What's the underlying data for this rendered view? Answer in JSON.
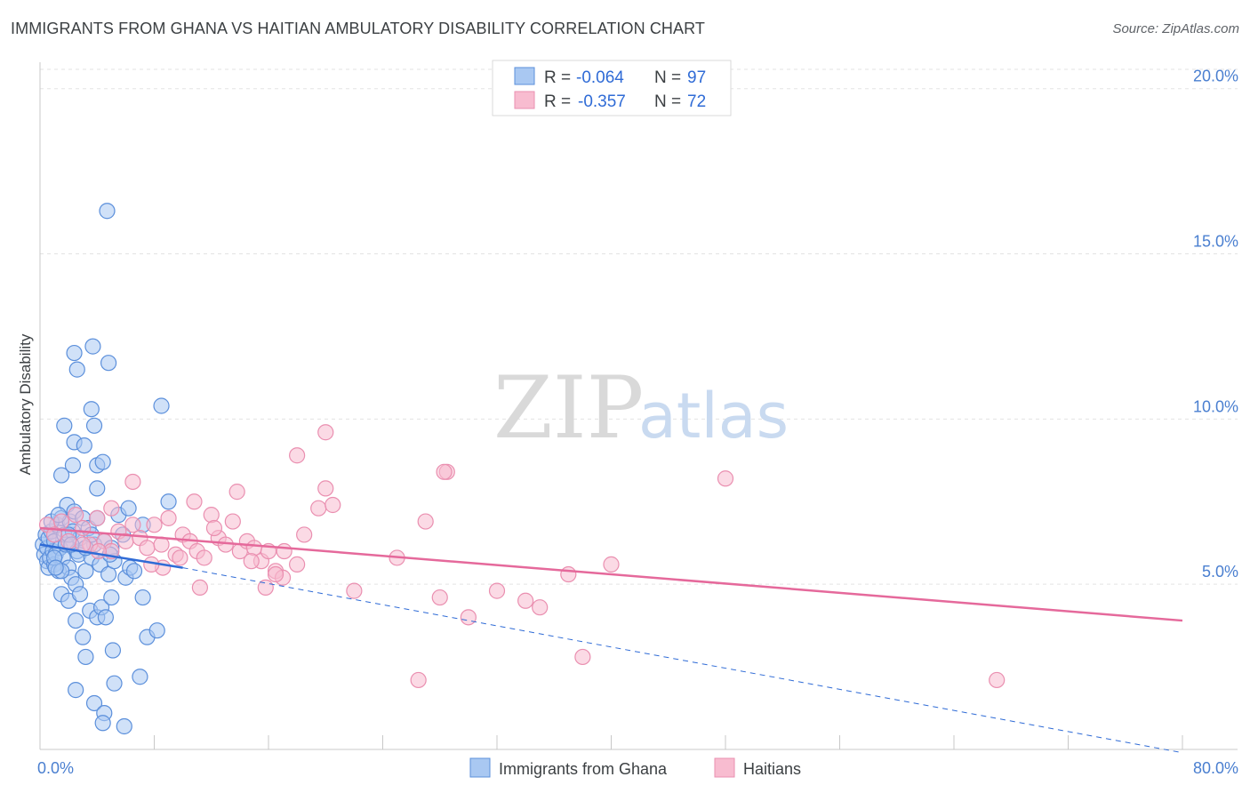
{
  "title": "IMMIGRANTS FROM GHANA VS HAITIAN AMBULATORY DISABILITY CORRELATION CHART",
  "source": "Source: ZipAtlas.com",
  "watermark": {
    "zip": "ZIP",
    "atlas": "atlas"
  },
  "colors": {
    "blue_fill": "#a9c8f2",
    "blue_stroke": "#5b8fdb",
    "blue_line": "#2f6bd6",
    "pink_fill": "#f8bcd0",
    "pink_stroke": "#ea8fb0",
    "pink_line": "#e5699b",
    "grid": "#e3e3e3",
    "tick_label": "#4a7fd0"
  },
  "legend": {
    "row1": {
      "r_label": "R =",
      "r_value": "-0.064",
      "n_label": "N =",
      "n_value": "97"
    },
    "row2": {
      "r_label": "R =",
      "r_value": "-0.357",
      "n_label": "N =",
      "n_value": "72"
    }
  },
  "chart_data": {
    "type": "scatter",
    "title": "IMMIGRANTS FROM GHANA VS HAITIAN AMBULATORY DISABILITY CORRELATION CHART",
    "ylabel": "Ambulatory Disability",
    "xlabel": "",
    "xlim": [
      0,
      80
    ],
    "ylim": [
      0,
      20.8
    ],
    "x_tick_labels": {
      "min": "0.0%",
      "max": "80.0%"
    },
    "y_ticks": [
      5,
      10,
      15,
      20
    ],
    "y_tick_labels": [
      "5.0%",
      "10.0%",
      "15.0%",
      "20.0%"
    ],
    "legend_position": "top-center",
    "series": [
      {
        "name": "Immigrants from Ghana",
        "color": "#5b8fdb",
        "points": [
          [
            0.2,
            6.2
          ],
          [
            0.3,
            5.9
          ],
          [
            0.4,
            6.5
          ],
          [
            0.5,
            5.7
          ],
          [
            0.5,
            6.1
          ],
          [
            0.6,
            5.5
          ],
          [
            0.6,
            6.4
          ],
          [
            0.7,
            5.8
          ],
          [
            0.8,
            6.6
          ],
          [
            0.9,
            6.0
          ],
          [
            1.0,
            5.6
          ],
          [
            1.0,
            6.3
          ],
          [
            1.1,
            5.9
          ],
          [
            1.2,
            6.8
          ],
          [
            1.3,
            5.4
          ],
          [
            1.4,
            6.1
          ],
          [
            1.5,
            7.0
          ],
          [
            1.6,
            5.8
          ],
          [
            1.7,
            6.5
          ],
          [
            1.8,
            6.2
          ],
          [
            1.9,
            7.4
          ],
          [
            2.0,
            5.5
          ],
          [
            2.1,
            6.9
          ],
          [
            2.2,
            5.2
          ],
          [
            2.3,
            6.6
          ],
          [
            2.4,
            7.2
          ],
          [
            2.5,
            5.0
          ],
          [
            2.6,
            6.0
          ],
          [
            2.7,
            5.9
          ],
          [
            2.8,
            6.4
          ],
          [
            3.0,
            7.0
          ],
          [
            3.2,
            5.4
          ],
          [
            3.4,
            6.7
          ],
          [
            3.6,
            5.8
          ],
          [
            3.8,
            6.2
          ],
          [
            4.0,
            7.0
          ],
          [
            4.2,
            5.6
          ],
          [
            4.5,
            6.3
          ],
          [
            4.8,
            5.3
          ],
          [
            5.0,
            6.1
          ],
          [
            5.2,
            5.7
          ],
          [
            5.5,
            7.1
          ],
          [
            5.8,
            6.5
          ],
          [
            6.0,
            5.2
          ],
          [
            6.3,
            5.5
          ],
          [
            1.5,
            8.3
          ],
          [
            1.7,
            9.8
          ],
          [
            2.3,
            8.6
          ],
          [
            2.4,
            9.3
          ],
          [
            3.1,
            9.2
          ],
          [
            3.6,
            10.3
          ],
          [
            3.8,
            9.8
          ],
          [
            4.0,
            8.6
          ],
          [
            4.4,
            8.7
          ],
          [
            2.4,
            12.0
          ],
          [
            2.6,
            11.5
          ],
          [
            3.7,
            12.2
          ],
          [
            4.8,
            11.7
          ],
          [
            4.7,
            16.3
          ],
          [
            8.5,
            10.4
          ],
          [
            1.5,
            4.7
          ],
          [
            2.0,
            4.5
          ],
          [
            2.5,
            3.9
          ],
          [
            3.0,
            3.4
          ],
          [
            3.2,
            2.8
          ],
          [
            3.5,
            4.2
          ],
          [
            4.0,
            4.0
          ],
          [
            4.3,
            4.3
          ],
          [
            4.6,
            4.0
          ],
          [
            5.0,
            4.6
          ],
          [
            5.1,
            3.0
          ],
          [
            5.2,
            2.0
          ],
          [
            2.5,
            1.8
          ],
          [
            3.8,
            1.4
          ],
          [
            4.5,
            1.1
          ],
          [
            4.4,
            0.8
          ],
          [
            5.9,
            0.7
          ],
          [
            7.0,
            2.2
          ],
          [
            7.2,
            4.6
          ],
          [
            7.5,
            3.4
          ],
          [
            8.2,
            3.6
          ],
          [
            9.0,
            7.5
          ],
          [
            7.2,
            6.8
          ],
          [
            6.2,
            7.3
          ],
          [
            4.0,
            7.9
          ],
          [
            2.0,
            6.5
          ],
          [
            3.2,
            6.1
          ],
          [
            1.0,
            5.8
          ],
          [
            1.5,
            5.4
          ],
          [
            2.8,
            4.7
          ],
          [
            0.8,
            6.9
          ],
          [
            1.3,
            7.1
          ],
          [
            3.6,
            6.5
          ],
          [
            4.9,
            5.9
          ],
          [
            2.2,
            6.2
          ],
          [
            1.1,
            5.5
          ],
          [
            6.6,
            5.4
          ]
        ],
        "trend": {
          "x1": 0,
          "y1": 6.2,
          "x2": 10,
          "y2": 5.5,
          "dashed_to": [
            80,
            -0.1
          ]
        }
      },
      {
        "name": "Haitians",
        "color": "#ea8fb0",
        "points": [
          [
            0.5,
            6.8
          ],
          [
            1.0,
            6.5
          ],
          [
            1.5,
            6.9
          ],
          [
            2.0,
            6.3
          ],
          [
            2.5,
            7.1
          ],
          [
            3.0,
            6.7
          ],
          [
            3.5,
            6.2
          ],
          [
            4.0,
            7.0
          ],
          [
            4.5,
            6.3
          ],
          [
            5.0,
            6.0
          ],
          [
            5.5,
            6.6
          ],
          [
            6.0,
            6.3
          ],
          [
            6.5,
            6.8
          ],
          [
            7.0,
            6.4
          ],
          [
            7.5,
            6.1
          ],
          [
            8.0,
            6.8
          ],
          [
            8.5,
            6.2
          ],
          [
            9.0,
            7.0
          ],
          [
            9.5,
            5.9
          ],
          [
            10.0,
            6.5
          ],
          [
            10.5,
            6.3
          ],
          [
            11.0,
            6.0
          ],
          [
            11.5,
            5.8
          ],
          [
            12.0,
            7.1
          ],
          [
            12.5,
            6.4
          ],
          [
            13.0,
            6.2
          ],
          [
            13.5,
            6.9
          ],
          [
            14.0,
            6.0
          ],
          [
            14.5,
            6.3
          ],
          [
            15.0,
            6.1
          ],
          [
            15.5,
            5.7
          ],
          [
            16.0,
            6.0
          ],
          [
            16.5,
            5.4
          ],
          [
            17.0,
            5.2
          ],
          [
            18.0,
            5.6
          ],
          [
            18.5,
            6.5
          ],
          [
            19.5,
            7.3
          ],
          [
            20.0,
            7.9
          ],
          [
            20.5,
            7.4
          ],
          [
            22.0,
            4.8
          ],
          [
            25.0,
            5.8
          ],
          [
            26.5,
            2.1
          ],
          [
            27.0,
            6.9
          ],
          [
            28.0,
            4.6
          ],
          [
            28.5,
            8.4
          ],
          [
            30.0,
            4.0
          ],
          [
            32.0,
            4.8
          ],
          [
            34.0,
            4.5
          ],
          [
            35.0,
            4.3
          ],
          [
            37.0,
            5.3
          ],
          [
            38.0,
            2.8
          ],
          [
            40.0,
            5.6
          ],
          [
            48.0,
            8.2
          ],
          [
            67.0,
            2.1
          ],
          [
            18.0,
            8.9
          ],
          [
            20.0,
            9.6
          ],
          [
            28.3,
            8.4
          ],
          [
            8.6,
            5.5
          ],
          [
            9.8,
            5.8
          ],
          [
            6.5,
            8.1
          ],
          [
            11.2,
            4.9
          ],
          [
            13.8,
            7.8
          ],
          [
            16.5,
            5.3
          ],
          [
            5.0,
            7.3
          ],
          [
            3.0,
            6.2
          ],
          [
            7.8,
            5.6
          ],
          [
            12.2,
            6.7
          ],
          [
            14.8,
            5.7
          ],
          [
            15.8,
            4.9
          ],
          [
            10.8,
            7.5
          ],
          [
            17.1,
            6.0
          ],
          [
            4.1,
            6.0
          ]
        ],
        "trend": {
          "x1": 0,
          "y1": 6.7,
          "x2": 80,
          "y2": 3.9
        }
      }
    ]
  }
}
